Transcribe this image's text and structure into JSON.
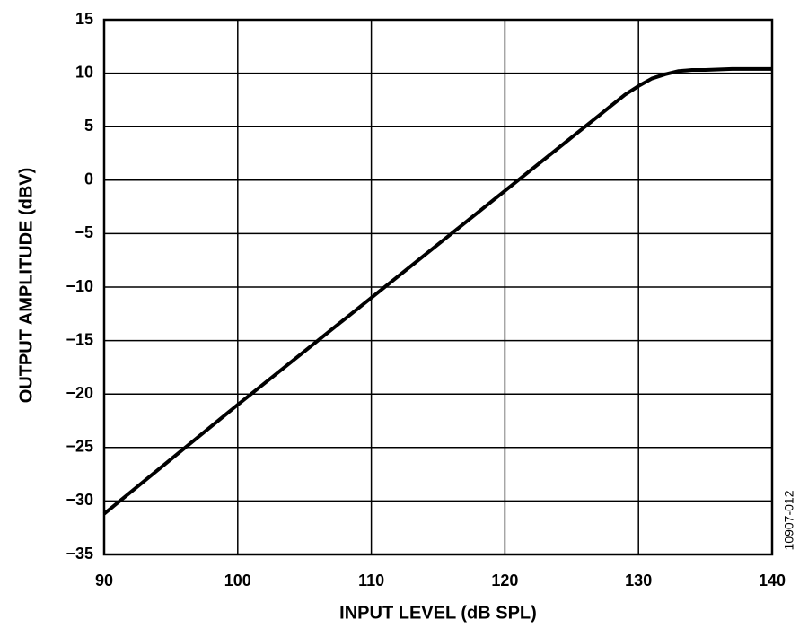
{
  "chart_data": {
    "type": "line",
    "xlabel": "INPUT LEVEL (dB SPL)",
    "ylabel": "OUTPUT AMPLITUDE (dBV)",
    "figure_code": "10907-012",
    "xlim": [
      90,
      140
    ],
    "xticks": [
      90,
      100,
      110,
      120,
      130,
      140
    ],
    "ylim": [
      -35,
      15
    ],
    "yticks": [
      {
        "value": -35,
        "label": "−35"
      },
      {
        "value": -30,
        "label": "−30"
      },
      {
        "value": -25,
        "label": "−25"
      },
      {
        "value": -20,
        "label": "−20"
      },
      {
        "value": -15,
        "label": "−15"
      },
      {
        "value": -10,
        "label": "−10"
      },
      {
        "value": -5,
        "label": "−5"
      },
      0,
      5,
      10,
      15
    ],
    "grid": true,
    "series": [
      {
        "color": "#000000",
        "x": [
          90,
          95,
          100,
          105,
          110,
          115,
          120,
          125,
          127,
          128,
          129,
          130,
          131,
          132,
          133,
          134,
          135,
          137,
          140
        ],
        "values": [
          -31.2,
          -26.1,
          -21,
          -16,
          -11,
          -6,
          -1,
          4,
          6,
          7,
          8,
          8.8,
          9.5,
          9.9,
          10.2,
          10.3,
          10.3,
          10.4,
          10.4
        ]
      }
    ]
  }
}
